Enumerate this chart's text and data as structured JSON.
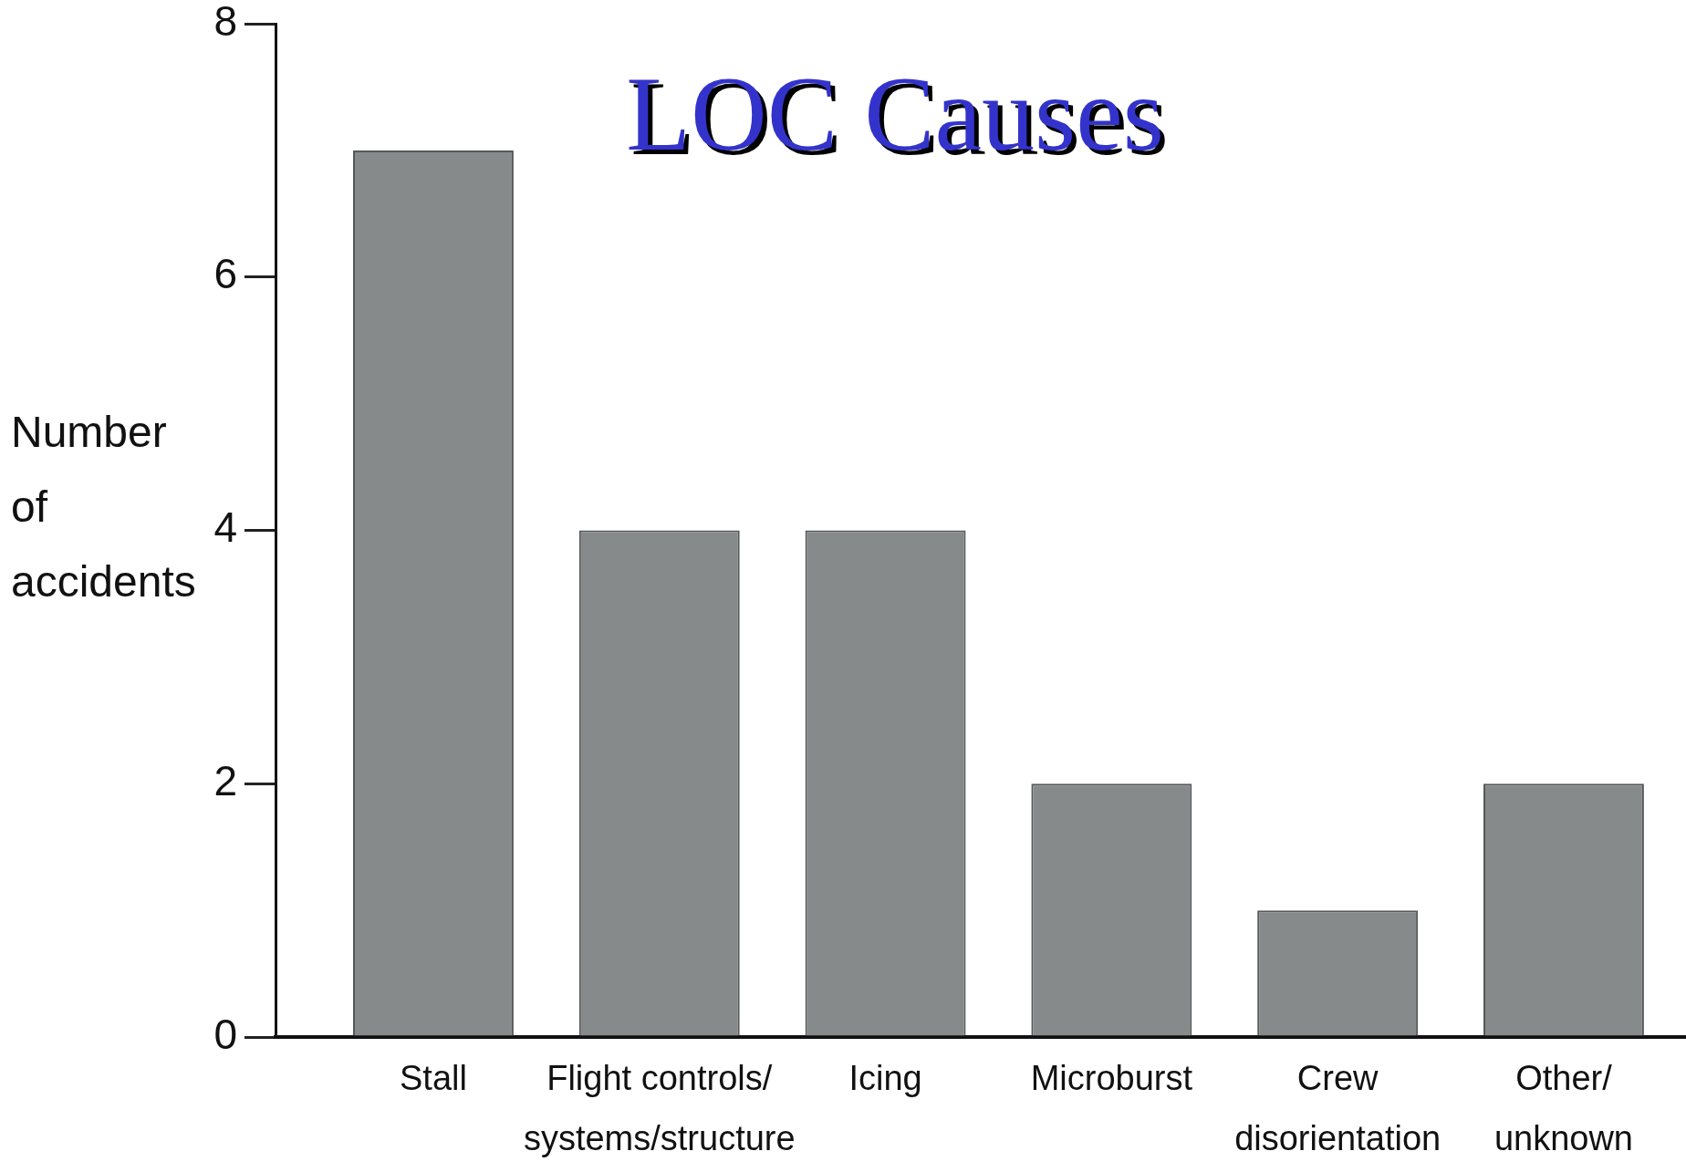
{
  "chart_data": {
    "type": "bar",
    "title": "LOC Causes",
    "ylabel": "Number of accidents",
    "categories": [
      "Stall",
      "Flight controls/ systems/structure",
      "Icing",
      "Microburst",
      "Crew disorientation",
      "Other/ unknown"
    ],
    "values": [
      7,
      4,
      4,
      2,
      1,
      2
    ],
    "color": "#878a8a",
    "ylim": [
      0,
      8
    ],
    "yticks": [
      0,
      2,
      4,
      6,
      8
    ]
  }
}
